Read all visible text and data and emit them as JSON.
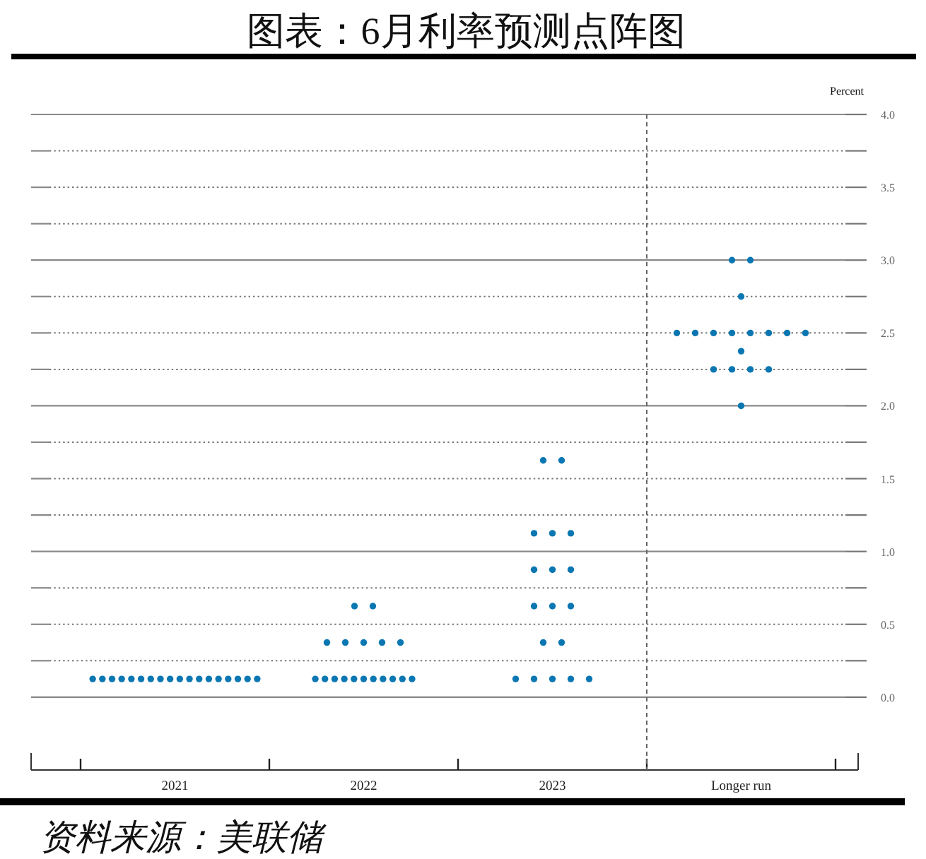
{
  "chart_data": {
    "type": "scatter",
    "title": "图表：6月利率预测点阵图",
    "ylabel": "Percent",
    "categories": [
      "2021",
      "2022",
      "2023",
      "Longer run"
    ],
    "series": [
      {
        "color": "#0b77b2",
        "values": [
          0.125,
          0.125,
          0.125,
          2.0
        ]
      },
      {
        "color": "#0b77b2",
        "values": [
          0.125,
          0.125,
          0.125,
          2.25
        ]
      },
      {
        "color": "#0b77b2",
        "values": [
          0.125,
          0.125,
          0.125,
          2.25
        ]
      },
      {
        "color": "#0b77b2",
        "values": [
          0.125,
          0.125,
          0.125,
          2.25
        ]
      },
      {
        "color": "#0b77b2",
        "values": [
          0.125,
          0.125,
          0.125,
          2.25
        ]
      },
      {
        "color": "#0b77b2",
        "values": [
          0.125,
          0.125,
          0.375,
          2.375
        ]
      },
      {
        "color": "#0b77b2",
        "values": [
          0.125,
          0.125,
          0.375,
          2.5
        ]
      },
      {
        "color": "#0b77b2",
        "values": [
          0.125,
          0.125,
          0.625,
          2.5
        ]
      },
      {
        "color": "#0b77b2",
        "values": [
          0.125,
          0.125,
          0.625,
          2.5
        ]
      },
      {
        "color": "#0b77b2",
        "values": [
          0.125,
          0.125,
          0.625,
          2.5
        ]
      },
      {
        "color": "#0b77b2",
        "values": [
          0.125,
          0.125,
          0.875,
          2.5
        ]
      },
      {
        "color": "#0b77b2",
        "values": [
          0.125,
          0.375,
          0.875,
          2.5
        ]
      },
      {
        "color": "#0b77b2",
        "values": [
          0.125,
          0.375,
          0.875,
          2.5
        ]
      },
      {
        "color": "#0b77b2",
        "values": [
          0.125,
          0.375,
          1.125,
          2.5
        ]
      },
      {
        "color": "#0b77b2",
        "values": [
          0.125,
          0.375,
          1.125,
          2.75
        ]
      },
      {
        "color": "#0b77b2",
        "values": [
          0.125,
          0.375,
          1.125,
          3.0
        ]
      },
      {
        "color": "#0b77b2",
        "values": [
          0.125,
          0.625,
          1.625,
          3.0
        ]
      },
      {
        "color": "#0b77b2",
        "values": [
          0.125,
          0.625,
          1.625,
          null
        ]
      }
    ],
    "ylim": [
      -0.5,
      4.0
    ],
    "yticks": [
      {
        "value": 0,
        "label": "0.0"
      },
      {
        "value": 0.25,
        "label": null
      },
      {
        "value": 0.5,
        "label": "0.5"
      },
      {
        "value": 0.75,
        "label": null
      },
      {
        "value": 1,
        "label": "1.0"
      },
      {
        "value": 1.25,
        "label": null
      },
      {
        "value": 1.5,
        "label": "1.5"
      },
      {
        "value": 1.75,
        "label": null
      },
      {
        "value": 2,
        "label": "2.0"
      },
      {
        "value": 2.25,
        "label": null
      },
      {
        "value": 2.5,
        "label": "2.5"
      },
      {
        "value": 2.75,
        "label": null
      },
      {
        "value": 3,
        "label": "3.0"
      },
      {
        "value": 3.25,
        "label": null
      },
      {
        "value": 3.5,
        "label": "3.5"
      },
      {
        "value": 3.75,
        "label": null
      },
      {
        "value": 4,
        "label": "4.0"
      }
    ],
    "ref_lines": [
      {
        "axis": "x",
        "value": "Longer run",
        "line_style": "dashed",
        "color": "#666666"
      }
    ],
    "grid": "y",
    "marker": "circle",
    "annotations": [
      "资料来源：美联储"
    ]
  }
}
